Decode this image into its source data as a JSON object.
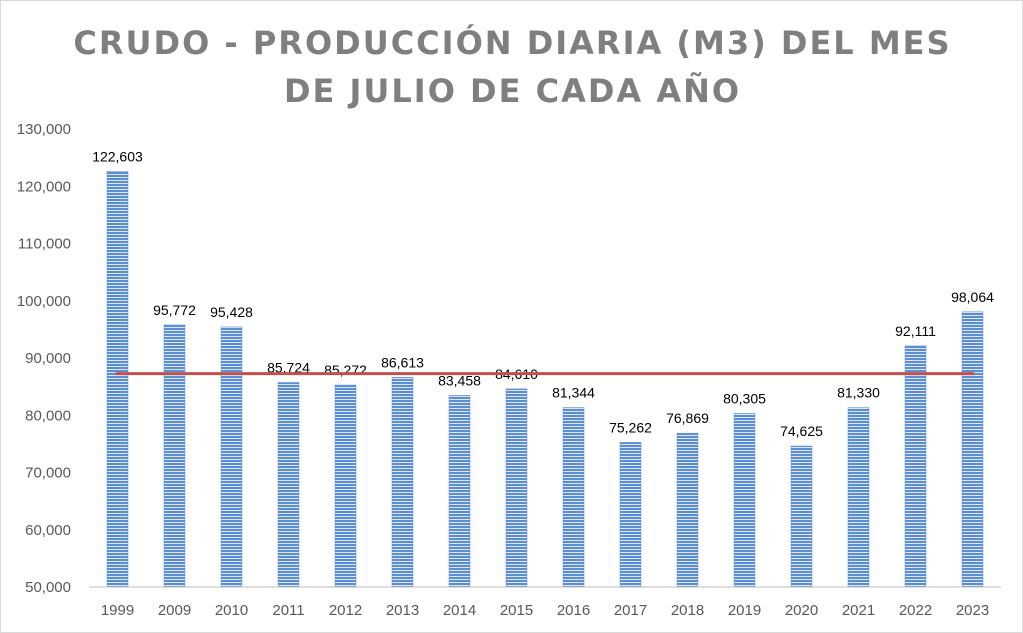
{
  "chart_data": {
    "type": "bar",
    "title_lines": [
      "CRUDO - PRODUCCIÓN DIARIA (M3) DEL MES",
      "DE JULIO DE CADA AÑO"
    ],
    "categories": [
      "1999",
      "2009",
      "2010",
      "2011",
      "2012",
      "2013",
      "2014",
      "2015",
      "2016",
      "2017",
      "2018",
      "2019",
      "2020",
      "2021",
      "2022",
      "2023"
    ],
    "values": [
      122603,
      95772,
      95428,
      85724,
      85272,
      86613,
      83458,
      84610,
      81344,
      75262,
      76869,
      80305,
      74625,
      81330,
      92111,
      98064
    ],
    "value_labels": [
      "122,603",
      "95,772",
      "95,428",
      "85,724",
      "85,272",
      "86,613",
      "83,458",
      "84,610",
      "81,344",
      "75,262",
      "76,869",
      "80,305",
      "74,625",
      "81,330",
      "92,111",
      "98,064"
    ],
    "ylim": [
      50000,
      130000
    ],
    "yticks": [
      50000,
      60000,
      70000,
      80000,
      90000,
      100000,
      110000,
      120000,
      130000
    ],
    "ytick_labels": [
      "50,000",
      "60,000",
      "70,000",
      "80,000",
      "90,000",
      "100,000",
      "110,000",
      "120,000",
      "130,000"
    ],
    "reference_line": 87276,
    "grid": false,
    "colors": {
      "bar": "#5b8fd1",
      "bar_stripe": "#dce6f4",
      "reference_line": "#c0504d",
      "axis": "#bfbfbf",
      "title": "#7f7f7f"
    }
  }
}
